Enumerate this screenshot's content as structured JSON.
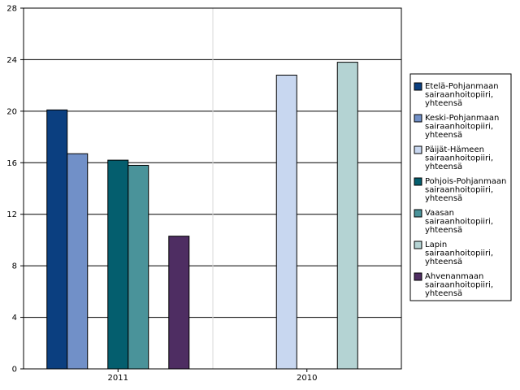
{
  "chart_data": {
    "type": "bar",
    "title": "",
    "xlabel": "",
    "ylabel": "",
    "ylim": [
      0,
      28
    ],
    "yticks": [
      0,
      4,
      8,
      12,
      16,
      20,
      24,
      28
    ],
    "grid": true,
    "legend_position": "right",
    "categories": [
      "2011",
      "2010"
    ],
    "series": [
      {
        "name": "Etelä-Pohjanmaan sairaanhoitopiiri, yhteensä",
        "color": "#0b3f80",
        "values": [
          20.1,
          null
        ]
      },
      {
        "name": "Keski-Pohjanmaan sairaanhoitopiiri, yhteensä",
        "color": "#7190c8",
        "values": [
          16.7,
          null
        ]
      },
      {
        "name": "Päijät-Hämeen sairaanhoitopiiri, yhteensä",
        "color": "#c8d7f0",
        "values": [
          null,
          22.8
        ]
      },
      {
        "name": "Pohjois-Pohjanmaan sairaanhoitopiiri, yhteensä",
        "color": "#045e6e",
        "values": [
          16.2,
          null
        ]
      },
      {
        "name": "Vaasan sairaanhoitopiiri, yhteensä",
        "color": "#4a939a",
        "values": [
          15.8,
          null
        ]
      },
      {
        "name": "Lapin sairaanhoitopiiri, yhteensä",
        "color": "#b4d3d3",
        "values": [
          null,
          23.8
        ]
      },
      {
        "name": "Ahvenanmaan sairaanhoitopiiri, yhteensä",
        "color": "#4e2d62",
        "values": [
          10.3,
          null
        ]
      }
    ]
  }
}
